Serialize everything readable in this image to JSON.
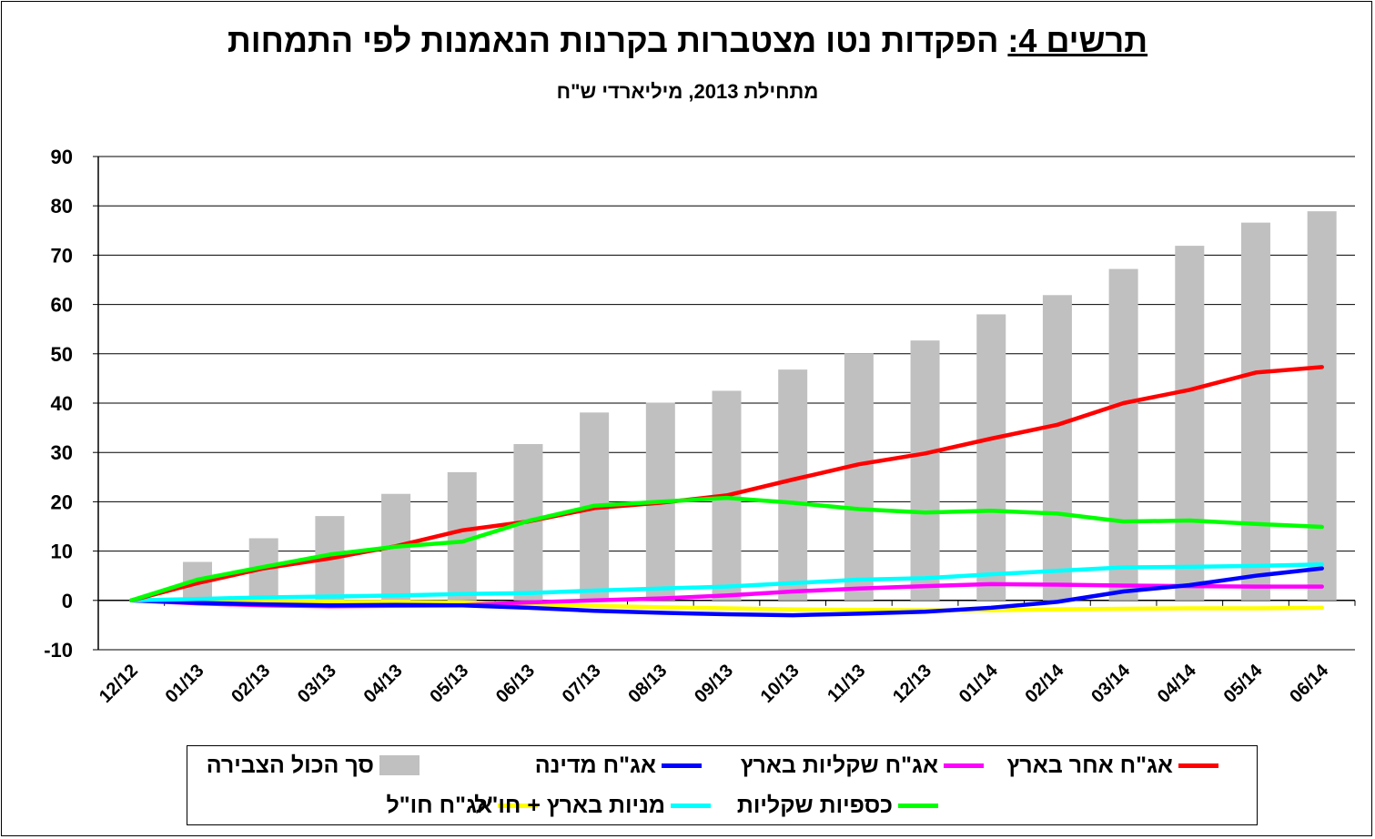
{
  "title": {
    "prefix": "תרשים 4:",
    "text": " הפקדות נטו מצטברות בקרנות הנאמנות לפי התמחות"
  },
  "subtitle": "מתחילת 2013,  מיליארדי ש\"ח",
  "chart_data": {
    "type": "bar+line",
    "categories": [
      "12/12",
      "01/13",
      "02/13",
      "03/13",
      "04/13",
      "05/13",
      "06/13",
      "07/13",
      "08/13",
      "09/13",
      "10/13",
      "11/13",
      "12/13",
      "01/14",
      "02/14",
      "03/14",
      "04/14",
      "05/14",
      "06/14"
    ],
    "ylim": [
      -10,
      90
    ],
    "yticks": [
      90,
      80,
      70,
      60,
      50,
      40,
      30,
      20,
      10,
      0,
      -10
    ],
    "grid": "horizontal",
    "legend_position": "bottom",
    "bars": {
      "name": "סך הכול הצבירה",
      "color": "#c0c0c0",
      "values": [
        0,
        7.8,
        12.6,
        17.1,
        21.6,
        26,
        31.7,
        38.1,
        40.1,
        42.5,
        46.8,
        50.1,
        52.7,
        58,
        61.9,
        67.2,
        71.9,
        76.6,
        78.9
      ]
    },
    "series": [
      {
        "name": "אג\"ח מדינה",
        "color": "#0000ff",
        "values": [
          0,
          -0.5,
          -0.8,
          -1,
          -0.9,
          -1,
          -1.5,
          -2.1,
          -2.5,
          -2.8,
          -3,
          -2.7,
          -2.3,
          -1.5,
          -0.3,
          1.8,
          3.1,
          5,
          6.5
        ]
      },
      {
        "name": "אג\"ח שקליות בארץ",
        "color": "#ff00ff",
        "values": [
          0,
          -0.6,
          -1,
          -1.2,
          -1.1,
          -1,
          -0.4,
          0,
          0.4,
          1,
          1.8,
          2.4,
          2.9,
          3.3,
          3.2,
          3,
          2.9,
          2.8,
          2.8
        ]
      },
      {
        "name": "אג\"ח אחר בארץ",
        "color": "#ff0000",
        "values": [
          0,
          3.5,
          6.5,
          8.5,
          11,
          14.2,
          16,
          18.7,
          19.8,
          21.3,
          24.5,
          27.6,
          29.8,
          32.8,
          35.6,
          40,
          42.7,
          46.2,
          47.3
        ]
      },
      {
        "name": "אג\"ח חו\"ל",
        "color": "#ffff00",
        "values": [
          0,
          -0.1,
          -0.2,
          -0.3,
          -0.3,
          -0.4,
          -0.8,
          -1.1,
          -1.4,
          -1.6,
          -1.8,
          -1.9,
          -2,
          -2,
          -1.8,
          -1.7,
          -1.6,
          -1.6,
          -1.5
        ]
      },
      {
        "name": "מניות בארץ + חו\"ל",
        "color": "#00ffff",
        "values": [
          0,
          0.3,
          0.6,
          0.8,
          1,
          1.3,
          1.5,
          2,
          2.4,
          2.8,
          3.5,
          4.2,
          4.5,
          5.3,
          6,
          6.7,
          6.8,
          7,
          7.3
        ]
      },
      {
        "name": "כספיות שקליות",
        "color": "#00ff00",
        "values": [
          0,
          4.2,
          6.8,
          9.3,
          10.9,
          11.9,
          16.1,
          19.2,
          20,
          20.8,
          19.8,
          18.5,
          17.8,
          18.2,
          17.6,
          16,
          16.2,
          15.5,
          14.9
        ]
      }
    ]
  }
}
